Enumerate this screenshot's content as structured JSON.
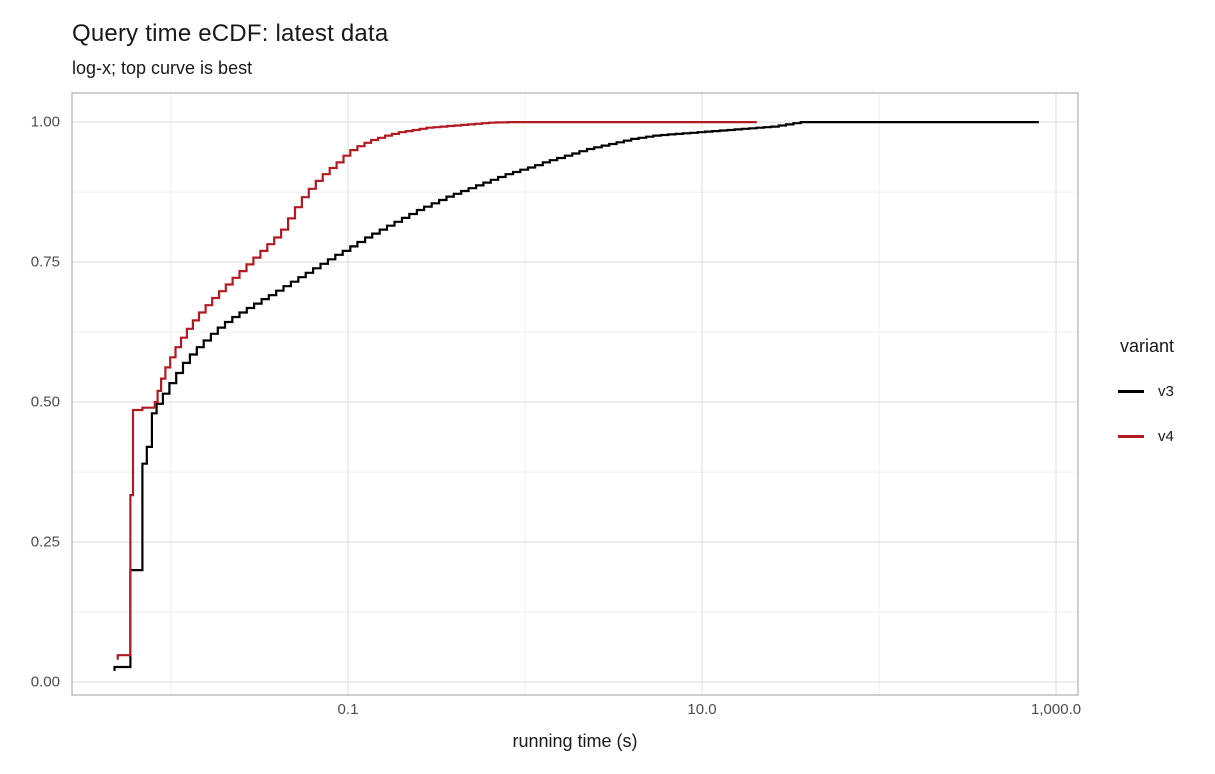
{
  "chart_data": {
    "type": "line",
    "subtype": "ecdf-step",
    "title": "Query time eCDF: latest data",
    "subtitle": "log-x; top curve is best",
    "xlabel": "running time (s)",
    "ylabel": "",
    "x_scale": "log10",
    "xlim": [
      0.00276,
      1330
    ],
    "ylim": [
      -0.023,
      1.052
    ],
    "grid": true,
    "x_ticks": [
      {
        "value": 0.1,
        "label": "0.1"
      },
      {
        "value": 10,
        "label": "10.0"
      },
      {
        "value": 1000,
        "label": "1,000.0"
      }
    ],
    "x_unlabeled_gridlines": [
      0.01,
      1,
      100
    ],
    "y_ticks": [
      {
        "value": 0.0,
        "label": "0.00"
      },
      {
        "value": 0.25,
        "label": "0.25"
      },
      {
        "value": 0.5,
        "label": "0.50"
      },
      {
        "value": 0.75,
        "label": "0.75"
      },
      {
        "value": 1.0,
        "label": "1.00"
      }
    ],
    "y_minor_gridlines": [
      0.125,
      0.375,
      0.625,
      0.875
    ],
    "legend": {
      "title": "variant",
      "position": "right",
      "entries": [
        {
          "label": "v3",
          "color": "#000000"
        },
        {
          "label": "v4",
          "color": "#B31B22"
        }
      ]
    },
    "series": [
      {
        "name": "v3",
        "color": "#000000",
        "step": true,
        "points": [
          [
            0.0048,
            0.02
          ],
          [
            0.0048,
            0.027
          ],
          [
            0.0059,
            0.2
          ],
          [
            0.0069,
            0.39
          ],
          [
            0.0073,
            0.42
          ],
          [
            0.0078,
            0.48
          ],
          [
            0.0083,
            0.497
          ],
          [
            0.009,
            0.515
          ],
          [
            0.0098,
            0.534
          ],
          [
            0.0107,
            0.552
          ],
          [
            0.0117,
            0.57
          ],
          [
            0.0128,
            0.585
          ],
          [
            0.014,
            0.598
          ],
          [
            0.0153,
            0.61
          ],
          [
            0.0168,
            0.622
          ],
          [
            0.0184,
            0.633
          ],
          [
            0.0202,
            0.643
          ],
          [
            0.0222,
            0.652
          ],
          [
            0.0244,
            0.66
          ],
          [
            0.0268,
            0.668
          ],
          [
            0.0295,
            0.676
          ],
          [
            0.0325,
            0.684
          ],
          [
            0.0357,
            0.691
          ],
          [
            0.0393,
            0.699
          ],
          [
            0.0432,
            0.707
          ],
          [
            0.0476,
            0.715
          ],
          [
            0.0524,
            0.723
          ],
          [
            0.0577,
            0.731
          ],
          [
            0.0635,
            0.739
          ],
          [
            0.0699,
            0.747
          ],
          [
            0.077,
            0.755
          ],
          [
            0.0848,
            0.763
          ],
          [
            0.0933,
            0.77
          ],
          [
            0.103,
            0.778
          ],
          [
            0.113,
            0.786
          ],
          [
            0.125,
            0.794
          ],
          [
            0.137,
            0.801
          ],
          [
            0.151,
            0.808
          ],
          [
            0.166,
            0.815
          ],
          [
            0.183,
            0.822
          ],
          [
            0.202,
            0.829
          ],
          [
            0.222,
            0.836
          ],
          [
            0.245,
            0.843
          ],
          [
            0.269,
            0.849
          ],
          [
            0.297,
            0.855
          ],
          [
            0.327,
            0.861
          ],
          [
            0.36,
            0.867
          ],
          [
            0.396,
            0.872
          ],
          [
            0.436,
            0.877
          ],
          [
            0.48,
            0.882
          ],
          [
            0.529,
            0.887
          ],
          [
            0.582,
            0.892
          ],
          [
            0.641,
            0.897
          ],
          [
            0.705,
            0.902
          ],
          [
            0.777,
            0.907
          ],
          [
            0.855,
            0.911
          ],
          [
            0.941,
            0.915
          ],
          [
            1.04,
            0.919
          ],
          [
            1.14,
            0.923
          ],
          [
            1.26,
            0.928
          ],
          [
            1.38,
            0.932
          ],
          [
            1.52,
            0.936
          ],
          [
            1.68,
            0.94
          ],
          [
            1.85,
            0.944
          ],
          [
            2.03,
            0.948
          ],
          [
            2.24,
            0.952
          ],
          [
            2.46,
            0.955
          ],
          [
            2.71,
            0.958
          ],
          [
            2.99,
            0.961
          ],
          [
            3.29,
            0.964
          ],
          [
            3.62,
            0.967
          ],
          [
            3.98,
            0.97
          ],
          [
            4.38,
            0.972
          ],
          [
            4.83,
            0.974
          ],
          [
            5.31,
            0.976
          ],
          [
            5.85,
            0.977
          ],
          [
            6.44,
            0.978
          ],
          [
            7.08,
            0.979
          ],
          [
            7.8,
            0.98
          ],
          [
            8.58,
            0.981
          ],
          [
            9.45,
            0.982
          ],
          [
            10.4,
            0.983
          ],
          [
            11.4,
            0.984
          ],
          [
            12.6,
            0.985
          ],
          [
            13.9,
            0.986
          ],
          [
            15.3,
            0.987
          ],
          [
            16.8,
            0.988
          ],
          [
            18.5,
            0.989
          ],
          [
            20.3,
            0.99
          ],
          [
            22.4,
            0.991
          ],
          [
            24.6,
            0.992
          ],
          [
            27.1,
            0.994
          ],
          [
            29.8,
            0.996
          ],
          [
            32.8,
            0.998
          ],
          [
            36.1,
            1.0
          ],
          [
            800,
            1.0
          ]
        ]
      },
      {
        "name": "v4",
        "color": "#B31B22",
        "step": true,
        "points": [
          [
            0.005,
            0.04
          ],
          [
            0.005,
            0.048
          ],
          [
            0.0059,
            0.334
          ],
          [
            0.0061,
            0.486
          ],
          [
            0.0069,
            0.49
          ],
          [
            0.0081,
            0.5
          ],
          [
            0.0084,
            0.52
          ],
          [
            0.0088,
            0.542
          ],
          [
            0.0093,
            0.562
          ],
          [
            0.0099,
            0.58
          ],
          [
            0.0106,
            0.598
          ],
          [
            0.0114,
            0.615
          ],
          [
            0.0123,
            0.631
          ],
          [
            0.0133,
            0.646
          ],
          [
            0.0144,
            0.66
          ],
          [
            0.0157,
            0.673
          ],
          [
            0.0171,
            0.686
          ],
          [
            0.0187,
            0.698
          ],
          [
            0.0204,
            0.71
          ],
          [
            0.0223,
            0.722
          ],
          [
            0.0244,
            0.734
          ],
          [
            0.0267,
            0.746
          ],
          [
            0.0292,
            0.758
          ],
          [
            0.032,
            0.77
          ],
          [
            0.035,
            0.782
          ],
          [
            0.0383,
            0.794
          ],
          [
            0.0419,
            0.808
          ],
          [
            0.0459,
            0.828
          ],
          [
            0.0502,
            0.848
          ],
          [
            0.0549,
            0.866
          ],
          [
            0.0601,
            0.881
          ],
          [
            0.0658,
            0.895
          ],
          [
            0.072,
            0.907
          ],
          [
            0.0788,
            0.918
          ],
          [
            0.0862,
            0.928
          ],
          [
            0.0943,
            0.94
          ],
          [
            0.103,
            0.95
          ],
          [
            0.113,
            0.957
          ],
          [
            0.124,
            0.963
          ],
          [
            0.135,
            0.968
          ],
          [
            0.148,
            0.972
          ],
          [
            0.162,
            0.976
          ],
          [
            0.177,
            0.979
          ],
          [
            0.194,
            0.982
          ],
          [
            0.212,
            0.984
          ],
          [
            0.232,
            0.986
          ],
          [
            0.254,
            0.988
          ],
          [
            0.278,
            0.99
          ],
          [
            0.304,
            0.991
          ],
          [
            0.333,
            0.992
          ],
          [
            0.364,
            0.993
          ],
          [
            0.399,
            0.994
          ],
          [
            0.436,
            0.995
          ],
          [
            0.477,
            0.996
          ],
          [
            0.522,
            0.997
          ],
          [
            0.571,
            0.998
          ],
          [
            0.625,
            0.999
          ],
          [
            0.684,
            0.9995
          ],
          [
            0.8,
            1.0
          ],
          [
            20.4,
            1.0
          ]
        ]
      }
    ]
  },
  "colors": {
    "background": "#ffffff",
    "panel_border": "#b0b0b0",
    "grid_major": "#e3e3e3",
    "grid_minor": "#efefef",
    "tick_text": "#4d4d4d",
    "text": "#191919",
    "series_v3": "#000000",
    "series_v4": "#B31B22"
  }
}
